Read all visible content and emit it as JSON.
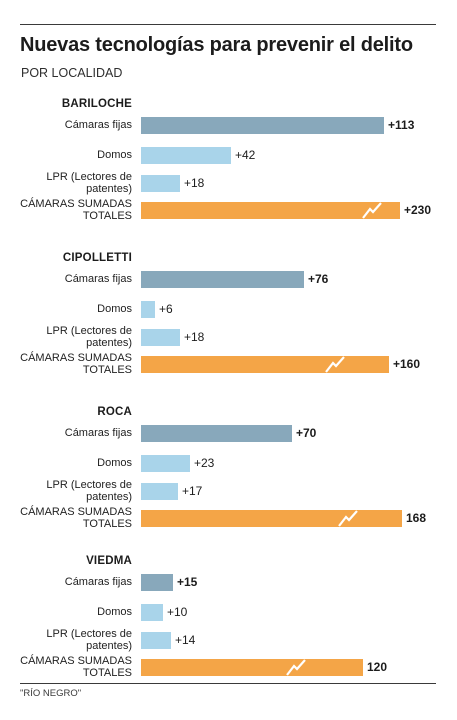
{
  "title": "Nuevas tecnologías para prevenir el delito",
  "subtitle": "POR LOCALIDAD",
  "source": "\"RÍO NEGRO\"",
  "colors": {
    "camaras_fijas": "#88a8bb",
    "domos": "#a9d4ea",
    "lpr": "#a9d4ea",
    "totales": "#f4a547"
  },
  "chart_data": {
    "type": "bar",
    "orientation": "horizontal",
    "title": "Nuevas tecnologías para prevenir el delito",
    "subtitle": "POR LOCALIDAD",
    "row_labels": [
      "Cámaras fijas",
      "Domos",
      "LPR (Lectores de patentes)",
      "CÁMARAS SUMADAS TOTALES"
    ],
    "axis_note": "CÁMARAS SUMADAS TOTALES bars are drawn with a scale break",
    "groups": [
      {
        "name": "BARILOCHE",
        "values": [
          113,
          42,
          18,
          230
        ],
        "labels": [
          "+113",
          "+42",
          "+18",
          "+230"
        ]
      },
      {
        "name": "CIPOLLETTI",
        "values": [
          76,
          6,
          18,
          160
        ],
        "labels": [
          "+76",
          "+6",
          "+18",
          "+160"
        ]
      },
      {
        "name": "ROCA",
        "values": [
          70,
          23,
          17,
          168
        ],
        "labels": [
          "+70",
          "+23",
          "+17",
          "168"
        ]
      },
      {
        "name": "VIEDMA",
        "values": [
          15,
          10,
          14,
          120
        ],
        "labels": [
          "+15",
          "+10",
          "+14",
          "120"
        ]
      }
    ],
    "grid": false,
    "legend": "none"
  }
}
